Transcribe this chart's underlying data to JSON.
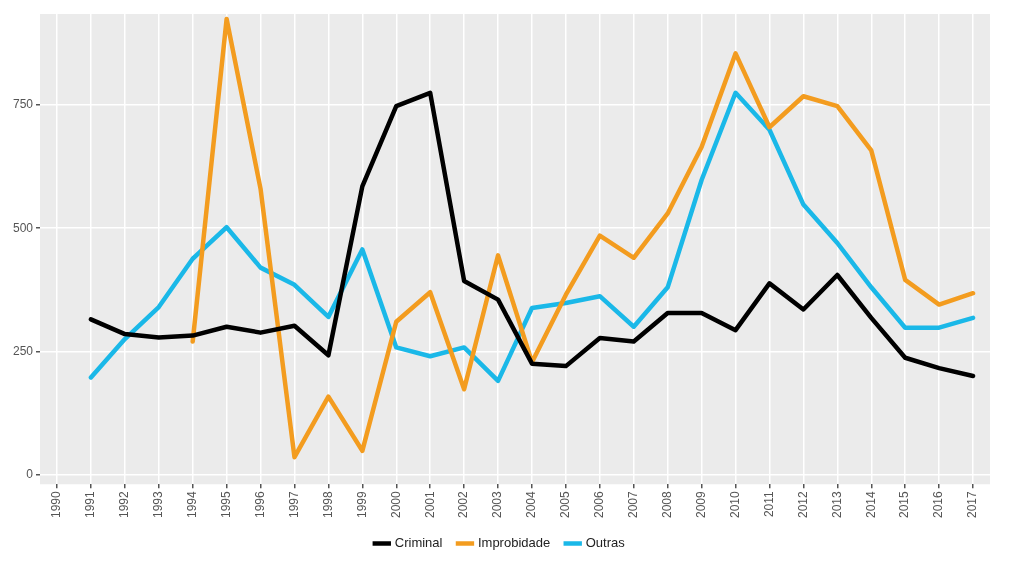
{
  "chart_data": {
    "type": "line",
    "categories": [
      "1990",
      "1991",
      "1992",
      "1993",
      "1994",
      "1995",
      "1996",
      "1997",
      "1998",
      "1999",
      "2000",
      "2001",
      "2002",
      "2003",
      "2004",
      "2005",
      "2006",
      "2007",
      "2008",
      "2009",
      "2010",
      "2011",
      "2012",
      "2013",
      "2014",
      "2015",
      "2016",
      "2017"
    ],
    "series": [
      {
        "name": "Criminal",
        "color": "#000000",
        "values": [
          null,
          315,
          285,
          278,
          282,
          300,
          288,
          302,
          242,
          585,
          748,
          775,
          393,
          355,
          225,
          220,
          277,
          270,
          328,
          328,
          293,
          388,
          335,
          405,
          318,
          237,
          216,
          200
        ]
      },
      {
        "name": "Improbidade",
        "color": "#f39c1f",
        "values": [
          null,
          null,
          null,
          null,
          270,
          925,
          580,
          35,
          158,
          48,
          310,
          370,
          173,
          445,
          228,
          365,
          485,
          440,
          530,
          665,
          855,
          705,
          768,
          748,
          658,
          395,
          345,
          368
        ]
      },
      {
        "name": "Outras",
        "color": "#1ab8e8",
        "values": [
          null,
          197,
          275,
          340,
          438,
          502,
          420,
          385,
          320,
          457,
          258,
          240,
          258,
          190,
          338,
          348,
          362,
          300,
          380,
          598,
          775,
          700,
          548,
          470,
          380,
          298,
          298,
          318
        ]
      }
    ],
    "ylim": [
      -20,
      935
    ],
    "yticks": [
      0,
      250,
      500,
      750
    ],
    "grid": true,
    "legend": "bottom",
    "marker": "none",
    "line_style": "solid"
  }
}
